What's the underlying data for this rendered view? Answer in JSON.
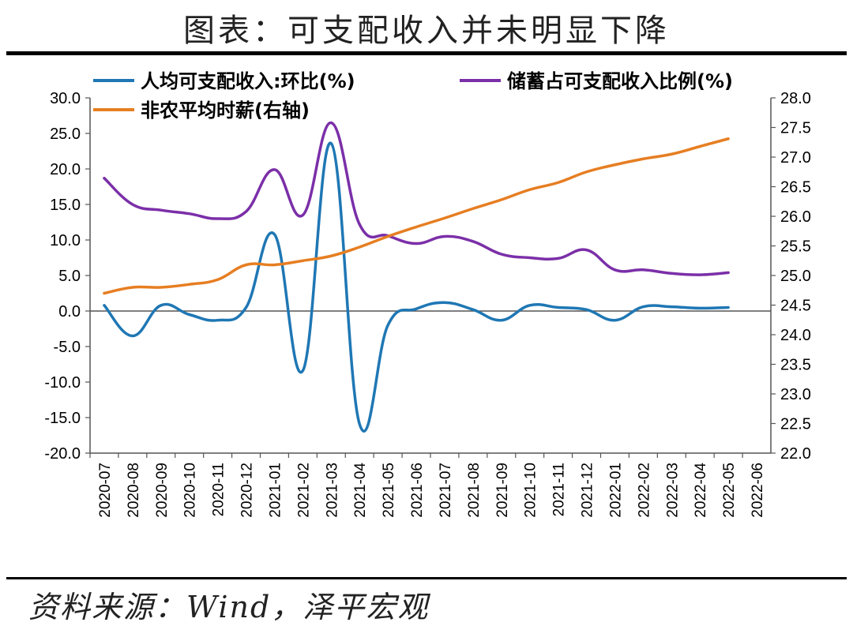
{
  "title": "图表：可支配收入并未明显下降",
  "source": "资料来源：Wind，泽平宏观",
  "chart_data": {
    "type": "line",
    "categories": [
      "2020-07",
      "2020-08",
      "2020-09",
      "2020-10",
      "2020-11",
      "2020-12",
      "2021-01",
      "2021-02",
      "2021-03",
      "2021-04",
      "2021-05",
      "2021-06",
      "2021-07",
      "2021-08",
      "2021-09",
      "2021-10",
      "2021-11",
      "2021-12",
      "2022-01",
      "2022-02",
      "2022-03",
      "2022-04",
      "2022-05",
      "2022-06"
    ],
    "y_left": {
      "range": [
        -20,
        30
      ],
      "ticks": [
        "30.0",
        "25.0",
        "20.0",
        "15.0",
        "10.0",
        "5.0",
        "0.0",
        "-5.0",
        "-10.0",
        "-15.0",
        "-20.0"
      ]
    },
    "y_right": {
      "range": [
        22,
        28
      ],
      "ticks": [
        "28.0",
        "27.5",
        "27.0",
        "26.5",
        "26.0",
        "25.5",
        "25.0",
        "24.5",
        "24.0",
        "23.5",
        "23.0",
        "22.5",
        "22.0"
      ]
    },
    "series": [
      {
        "name": "人均可支配收入:环比(%)",
        "axis": "left",
        "color": "#1f77b4",
        "values": [
          0.8,
          -3.5,
          0.8,
          -0.5,
          -1.3,
          0.5,
          10.8,
          -8.4,
          23.6,
          -15.9,
          -2.0,
          0.3,
          1.2,
          0.2,
          -1.3,
          0.8,
          0.5,
          0.2,
          -1.3,
          0.6,
          0.6,
          0.4,
          0.5,
          null
        ]
      },
      {
        "name": "储蓄占可支配收入比例(%)",
        "axis": "left",
        "color": "#7b2fa8",
        "values": [
          18.7,
          15.0,
          14.2,
          13.7,
          13.0,
          14.0,
          19.9,
          13.5,
          26.5,
          12.2,
          10.6,
          9.5,
          10.5,
          9.8,
          8.0,
          7.5,
          7.4,
          8.6,
          5.8,
          5.8,
          5.3,
          5.1,
          5.4,
          null
        ]
      },
      {
        "name": "非农平均时薪(右轴)",
        "axis": "right",
        "color": "#e67e22",
        "values": [
          24.7,
          24.8,
          24.8,
          24.85,
          24.93,
          25.18,
          25.18,
          25.25,
          25.33,
          25.48,
          25.66,
          25.82,
          25.97,
          26.13,
          26.28,
          26.45,
          26.57,
          26.75,
          26.87,
          26.97,
          27.05,
          27.18,
          27.31,
          null
        ]
      }
    ]
  }
}
